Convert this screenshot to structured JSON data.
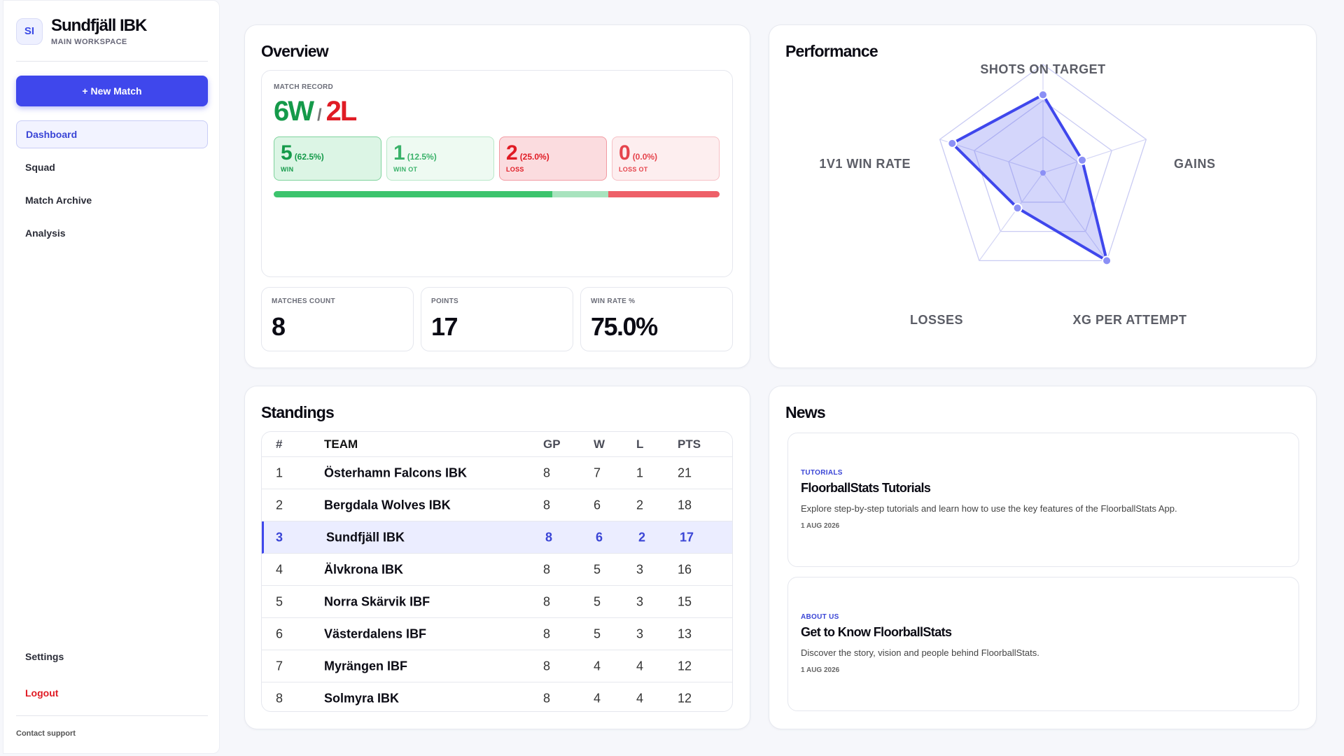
{
  "sidebar": {
    "logo_initials": "SI",
    "brand_name": "Sundfjäll IBK",
    "brand_sub": "MAIN WORKSPACE",
    "new_match_label": "+ New Match",
    "nav": [
      "Dashboard",
      "Squad",
      "Match Archive",
      "Analysis"
    ],
    "settings_label": "Settings",
    "logout_label": "Logout",
    "contact_label": "Contact support"
  },
  "overview": {
    "title": "Overview",
    "record_label": "MATCH RECORD",
    "record_w": "6W",
    "record_sep": "/",
    "record_l": "2L",
    "stats": [
      {
        "n": "5",
        "p": "(62.5%)",
        "k": "WIN"
      },
      {
        "n": "1",
        "p": "(12.5%)",
        "k": "WIN OT"
      },
      {
        "n": "2",
        "p": "(25.0%)",
        "k": "LOSS"
      },
      {
        "n": "0",
        "p": "(0.0%)",
        "k": "LOSS OT"
      }
    ],
    "bar_fractions": [
      0.625,
      0.125,
      0.25,
      0.0
    ],
    "bar_colors": [
      "#3cc46d",
      "#a8e3be",
      "#ee6068",
      "#f6b0b5"
    ],
    "matches_label": "MATCHES COUNT",
    "matches_value": "8",
    "points_label": "POINTS",
    "points_value": "17",
    "winrate_label": "WIN RATE %",
    "winrate_value": "75.0%"
  },
  "performance": {
    "title": "Performance",
    "axes": [
      "SHOTS ON TARGET",
      "GAINS",
      "XG PER ATTEMPT",
      "LOSSES",
      "1V1 WIN RATE"
    ],
    "values": [
      0.72,
      0.38,
      1.0,
      0.4,
      0.88
    ],
    "accent": "#3f47ec"
  },
  "standings": {
    "title": "Standings",
    "headers": {
      "rank": "#",
      "team": "TEAM",
      "gp": "GP",
      "w": "W",
      "l": "L",
      "pts": "PTS"
    },
    "rows": [
      {
        "rank": "1",
        "team": "Österhamn Falcons IBK",
        "gp": "8",
        "w": "7",
        "l": "1",
        "pts": "21"
      },
      {
        "rank": "2",
        "team": "Bergdala Wolves IBK",
        "gp": "8",
        "w": "6",
        "l": "2",
        "pts": "18"
      },
      {
        "rank": "3",
        "team": "Sundfjäll IBK",
        "gp": "8",
        "w": "6",
        "l": "2",
        "pts": "17"
      },
      {
        "rank": "4",
        "team": "Älvkrona IBK",
        "gp": "8",
        "w": "5",
        "l": "3",
        "pts": "16"
      },
      {
        "rank": "5",
        "team": "Norra Skärvik IBF",
        "gp": "8",
        "w": "5",
        "l": "3",
        "pts": "15"
      },
      {
        "rank": "6",
        "team": "Västerdalens IBF",
        "gp": "8",
        "w": "5",
        "l": "3",
        "pts": "13"
      },
      {
        "rank": "7",
        "team": "Myrängen IBF",
        "gp": "8",
        "w": "4",
        "l": "4",
        "pts": "12"
      },
      {
        "rank": "8",
        "team": "Solmyra IBK",
        "gp": "8",
        "w": "4",
        "l": "4",
        "pts": "12"
      }
    ]
  },
  "news": {
    "title": "News",
    "items": [
      {
        "tag": "TUTORIALS",
        "title": "FloorballStats Tutorials",
        "desc": "Explore step-by-step tutorials and learn how to use the key features of the FloorballStats App.",
        "date": "1 AUG 2026"
      },
      {
        "tag": "ABOUT US",
        "title": "Get to Know FloorballStats",
        "desc": "Discover the story, vision and people behind FloorballStats.",
        "date": "1 AUG 2026"
      }
    ]
  }
}
